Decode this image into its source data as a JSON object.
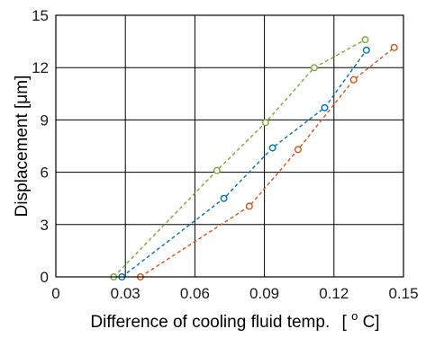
{
  "chart_data": {
    "type": "line",
    "title": "",
    "xlabel": "Difference of cooling fluid temp.",
    "xlabel_unit_prefix": "[",
    "xlabel_unit_sup": "o",
    "xlabel_unit_base": "C]",
    "ylabel": "Displacement [μm]",
    "xlim": [
      0,
      0.15
    ],
    "ylim": [
      0,
      15
    ],
    "x_ticks": [
      0,
      0.03,
      0.06,
      0.09,
      0.12,
      0.15
    ],
    "x_tick_labels": [
      "0",
      "0.03",
      "0.06",
      "0.09",
      "0.12",
      "0.15"
    ],
    "y_ticks": [
      0,
      3,
      6,
      9,
      12,
      15
    ],
    "y_tick_labels": [
      "0",
      "3",
      "6",
      "9",
      "12",
      "15"
    ],
    "grid": true,
    "legend": "none",
    "series": [
      {
        "color": "#0072BD",
        "x": [
          0.0285,
          0.0725,
          0.0935,
          0.116,
          0.134
        ],
        "y": [
          0.0,
          4.5,
          7.4,
          9.7,
          13.0
        ]
      },
      {
        "color": "#D95319",
        "x": [
          0.0365,
          0.0835,
          0.1045,
          0.1285,
          0.146
        ],
        "y": [
          0.0,
          4.05,
          7.3,
          11.3,
          13.15
        ]
      },
      {
        "color": "#77AC30",
        "x": [
          0.025,
          0.0695,
          0.0905,
          0.1115,
          0.1335
        ],
        "y": [
          0.0,
          6.1,
          8.85,
          12.0,
          13.6
        ]
      }
    ]
  }
}
